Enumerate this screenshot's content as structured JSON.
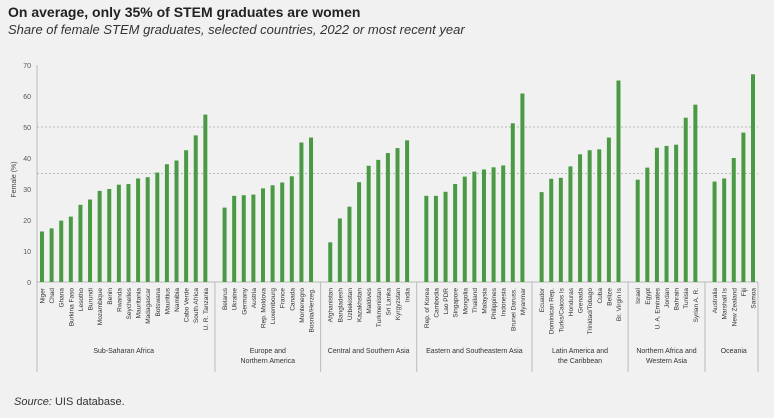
{
  "title": "On average, only 35% of STEM graduates are women",
  "subtitle": "Share of female STEM graduates, selected countries, 2022 or most recent year",
  "source_label": "Source:",
  "source_text": " UIS database.",
  "colors": {
    "bar": "#4a9a44",
    "ref_line": "#b8b8b8",
    "axis": "#bbbbbb"
  },
  "chart_data": {
    "type": "bar",
    "title": "On average, only 35% of STEM graduates are women",
    "xlabel": "",
    "ylabel": "Female (%)",
    "ylim": [
      0,
      70
    ],
    "yticks": [
      0,
      10,
      20,
      30,
      40,
      50,
      60,
      70
    ],
    "reference_lines": [
      35,
      50
    ],
    "grid": false,
    "groups": [
      {
        "name": "Sub-Saharan Africa",
        "categories": [
          "Niger",
          "Chad",
          "Ghana",
          "Burkina Faso",
          "Lesotho",
          "Burundi",
          "Mozambique",
          "Benin",
          "Rwanda",
          "Seychelles",
          "Mauritania",
          "Madagascar",
          "Botswana",
          "Mauritius",
          "Namibia",
          "Cabo Verde",
          "South Africa",
          "U. R. Tanzania"
        ],
        "values": [
          16.3,
          17.3,
          19.8,
          21.1,
          24.9,
          26.6,
          29.4,
          30.0,
          31.4,
          31.6,
          33.4,
          33.8,
          35.3,
          38.0,
          39.2,
          42.5,
          47.3,
          54.0
        ]
      },
      {
        "name": "Europe and\nNorthern America",
        "categories": [
          "Belarus",
          "Ukraine",
          "Germany",
          "Austria",
          "Rep. Moldova",
          "Luxembourg",
          "France",
          "Canada",
          "Montenegro",
          "Bosnia/Herzeg."
        ],
        "values": [
          24.0,
          27.8,
          28.0,
          28.2,
          30.2,
          31.2,
          32.1,
          34.1,
          45.0,
          46.6
        ]
      },
      {
        "name": "Central and Southern Asia",
        "categories": [
          "Afghanistan",
          "Bangladesh",
          "Uzbekistan",
          "Kazakhstan",
          "Maldives",
          "Turkmenistan",
          "Sri Lanka",
          "Kyrgyzstan",
          "India"
        ],
        "values": [
          12.8,
          20.5,
          24.3,
          32.2,
          37.5,
          39.4,
          41.6,
          43.2,
          45.7
        ]
      },
      {
        "name": "Eastern and Southeastern Asia",
        "categories": [
          "Rep. of Korea",
          "Cambodia",
          "Lao PDR",
          "Singapore",
          "Mongolia",
          "Thailand",
          "Malaysia",
          "Philippines",
          "Indonesia",
          "Brunei Daruss.",
          "Myanmar"
        ],
        "values": [
          27.8,
          27.8,
          29.1,
          31.6,
          34.0,
          35.6,
          36.3,
          37.0,
          37.6,
          51.2,
          60.8
        ]
      },
      {
        "name": "Latin America and\nthe Caribbean",
        "categories": [
          "Ecuador",
          "Dominican Rep.",
          "Turks/Caicos Is",
          "Honduras",
          "Grenada",
          "Trinidad/Tobago",
          "Cuba",
          "Belize",
          "Br. Virgin Is"
        ],
        "values": [
          29.0,
          33.3,
          33.6,
          37.3,
          41.2,
          42.5,
          42.8,
          46.6,
          65.0
        ]
      },
      {
        "name": "Northern Africa and\nWestern Asia",
        "categories": [
          "Israel",
          "Egypt",
          "U. A. Emirates",
          "Jordan",
          "Bahrain",
          "Tunisia",
          "Syrian A. R."
        ],
        "values": [
          33.0,
          36.9,
          43.3,
          43.9,
          44.3,
          53.0,
          57.2
        ]
      },
      {
        "name": "Oceania",
        "categories": [
          "Australia",
          "Marshall Is",
          "New Zealand",
          "Fiji",
          "Samoa"
        ],
        "values": [
          32.4,
          33.4,
          40.0,
          48.2,
          67.0
        ]
      }
    ]
  }
}
